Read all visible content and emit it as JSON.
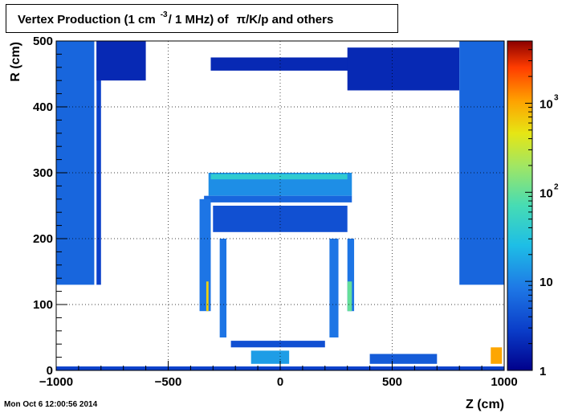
{
  "title": {
    "prefix": "Vertex Production (1 cm",
    "exponent": "-3",
    "middle": "/ 1 MHz) of",
    "suffix": "π/K/p and others"
  },
  "timestamp": "Mon Oct  6 12:00:56 2014",
  "chart_data": {
    "type": "heatmap",
    "title": "Vertex Production (1 cm^-3 / 1 MHz) of π/K/p and others",
    "xlabel": "Z (cm)",
    "ylabel": "R (cm)",
    "xlim": [
      -1000,
      1000
    ],
    "ylim": [
      0,
      500
    ],
    "xticks": [
      -1000,
      -500,
      0,
      500,
      1000
    ],
    "xtick_labels": [
      "−1000",
      "−500",
      "0",
      "500",
      "1000"
    ],
    "yticks": [
      0,
      100,
      200,
      300,
      400,
      500
    ],
    "ytick_labels": [
      "0",
      "100",
      "200",
      "300",
      "400",
      "500"
    ],
    "grid": true,
    "colorbar": {
      "scale": "log",
      "range": [
        1,
        5000
      ],
      "tick_values": [
        1,
        10,
        100,
        1000
      ],
      "labels": [
        {
          "base": "1",
          "exp": ""
        },
        {
          "base": "10",
          "exp": ""
        },
        {
          "base": "10",
          "exp": "2"
        },
        {
          "base": "10",
          "exp": "3"
        }
      ]
    },
    "regions": [
      {
        "z": [
          -1000,
          -830
        ],
        "r": [
          130,
          500
        ],
        "value": 6
      },
      {
        "z": [
          -820,
          -800
        ],
        "r": [
          130,
          500
        ],
        "value": 3
      },
      {
        "z": [
          -820,
          -600
        ],
        "r": [
          440,
          500
        ],
        "value": 2
      },
      {
        "z": [
          -310,
          330
        ],
        "r": [
          455,
          475
        ],
        "value": 2
      },
      {
        "z": [
          300,
          800
        ],
        "r": [
          425,
          490
        ],
        "value": 2
      },
      {
        "z": [
          800,
          1000
        ],
        "r": [
          130,
          500
        ],
        "value": 6
      },
      {
        "z": [
          -320,
          320
        ],
        "r": [
          265,
          300
        ],
        "value": 12
      },
      {
        "z": [
          -310,
          300
        ],
        "r": [
          290,
          298
        ],
        "value": 40
      },
      {
        "z": [
          -340,
          320
        ],
        "r": [
          255,
          265
        ],
        "value": 6
      },
      {
        "z": [
          -300,
          300
        ],
        "r": [
          210,
          250
        ],
        "value": 4
      },
      {
        "z": [
          -360,
          -310
        ],
        "r": [
          90,
          260
        ],
        "value": 8
      },
      {
        "z": [
          -330,
          -320
        ],
        "r": [
          90,
          135
        ],
        "value": 600
      },
      {
        "z": [
          300,
          330
        ],
        "r": [
          90,
          200
        ],
        "value": 8
      },
      {
        "z": [
          300,
          320
        ],
        "r": [
          90,
          135
        ],
        "value": 100
      },
      {
        "z": [
          -270,
          -240
        ],
        "r": [
          50,
          200
        ],
        "value": 8
      },
      {
        "z": [
          220,
          260
        ],
        "r": [
          50,
          200
        ],
        "value": 8
      },
      {
        "z": [
          -220,
          200
        ],
        "r": [
          35,
          45
        ],
        "value": 4
      },
      {
        "z": [
          -130,
          40
        ],
        "r": [
          10,
          30
        ],
        "value": 15
      },
      {
        "z": [
          400,
          700
        ],
        "r": [
          10,
          25
        ],
        "value": 5
      },
      {
        "z": [
          940,
          990
        ],
        "r": [
          10,
          35
        ],
        "value": 1000
      },
      {
        "z": [
          -1000,
          1000
        ],
        "r": [
          0,
          6
        ],
        "value": 3
      }
    ]
  }
}
